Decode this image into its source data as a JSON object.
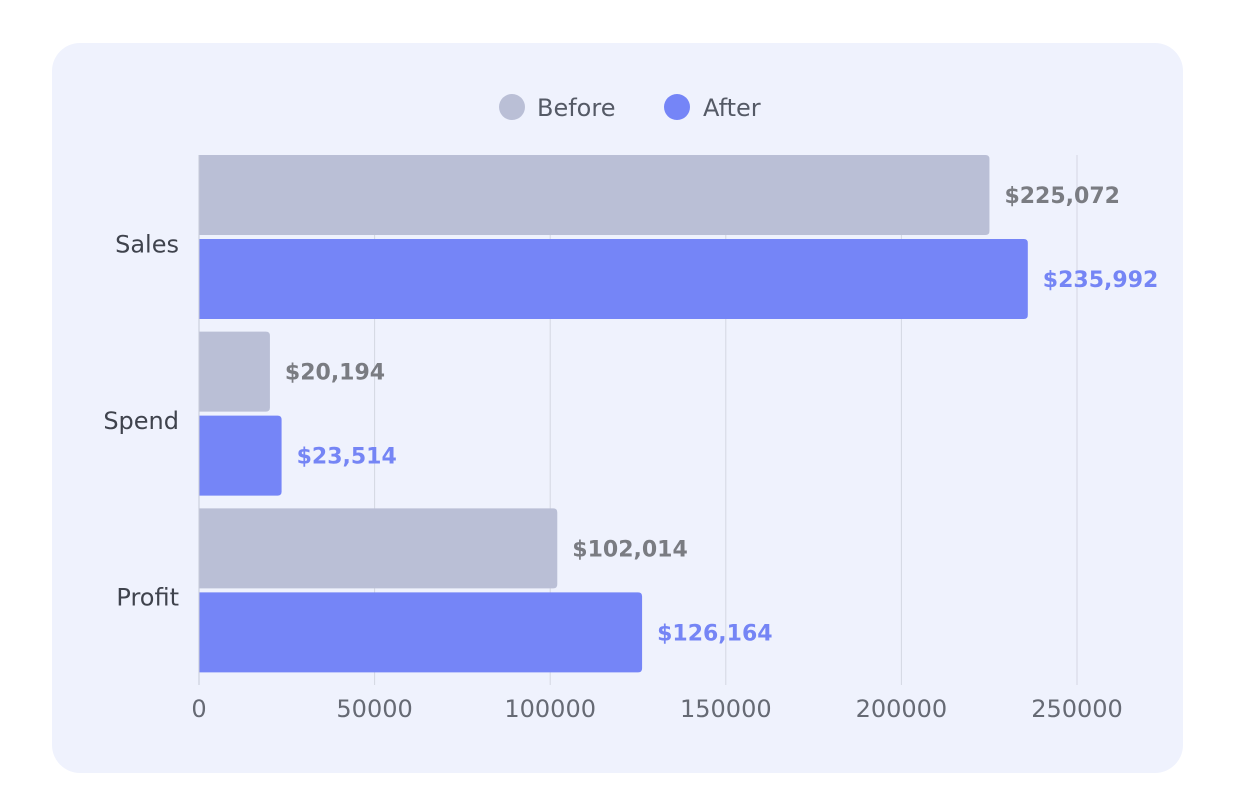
{
  "chart_data": {
    "type": "bar",
    "orientation": "horizontal",
    "categories": [
      "Sales",
      "Spend",
      "Profit"
    ],
    "series": [
      {
        "name": "Before",
        "color": "#babfd6",
        "values": [
          225072,
          20194,
          102014
        ],
        "labels": [
          "$225,072",
          "$20,194",
          "$102,014"
        ]
      },
      {
        "name": "After",
        "color": "#7585f7",
        "values": [
          235992,
          23514,
          126164
        ],
        "labels": [
          "$235,992",
          "$23,514",
          "$126,164"
        ]
      }
    ],
    "xlim": [
      0,
      250000
    ],
    "xticks": [
      0,
      50000,
      100000,
      150000,
      200000,
      250000
    ],
    "xtick_labels": [
      "0",
      "50000",
      "100000",
      "150000",
      "200000",
      "250000"
    ],
    "grid": true,
    "legend_position": "top-center",
    "title": "",
    "xlabel": "",
    "ylabel": ""
  }
}
